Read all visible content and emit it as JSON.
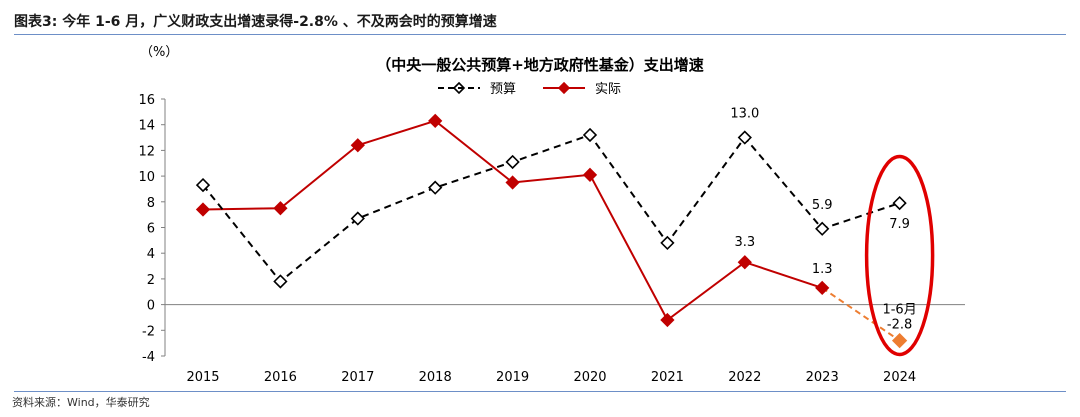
{
  "figure_title": "图表3:  今年 1-6 月，广义财政支出增速录得-2.8% 、不及两会时的预算增速",
  "source_text": "资料来源：Wind，华泰研究",
  "colors": {
    "budget": "#000000",
    "actual": "#c00000",
    "forecast": "#ed7d31",
    "highlight": "#e00000",
    "rule": "#6d8fc7"
  },
  "chart_data": {
    "type": "line",
    "title": "（中央一般公共预算+地方政府性基金）支出增速",
    "ylabel": "（%）",
    "ylim": [
      -4,
      16
    ],
    "yticks": [
      "-4",
      "-2",
      "0",
      "2",
      "4",
      "6",
      "8",
      "10",
      "12",
      "14",
      "16"
    ],
    "categories": [
      "2015",
      "2016",
      "2017",
      "2018",
      "2019",
      "2020",
      "2021",
      "2022",
      "2023",
      "2024"
    ],
    "series": [
      {
        "name": "预算",
        "style": "dashed",
        "marker": "diamond-open",
        "values": [
          9.3,
          1.8,
          6.7,
          9.1,
          11.1,
          13.2,
          4.8,
          13.0,
          5.9,
          7.9
        ]
      },
      {
        "name": "实际",
        "style": "solid",
        "marker": "diamond-filled",
        "values": [
          7.4,
          7.5,
          12.4,
          14.3,
          9.5,
          10.1,
          -1.2,
          3.3,
          1.3,
          null
        ]
      }
    ],
    "forecast": {
      "from_category": "2023",
      "to_category": "2024",
      "from_value": 1.3,
      "value": -2.8
    },
    "data_labels": [
      {
        "text": "13.0",
        "series": "预算",
        "category": "2022",
        "value": 13.0
      },
      {
        "text": "3.3",
        "series": "实际",
        "category": "2022",
        "value": 3.3
      },
      {
        "text": "5.9",
        "series": "预算",
        "category": "2023",
        "value": 5.9
      },
      {
        "text": "1.3",
        "series": "实际",
        "category": "2023",
        "value": 1.3
      },
      {
        "text": "7.9",
        "series": "预算",
        "category": "2024",
        "value": 7.9
      },
      {
        "text": "1-6月",
        "series": "实际",
        "category": "2024",
        "value": -2.8
      },
      {
        "text": "-2.8",
        "series": "实际",
        "category": "2024",
        "value": -2.8
      }
    ],
    "legend": {
      "position": "top-center",
      "entries": [
        "预算",
        "实际"
      ]
    }
  }
}
